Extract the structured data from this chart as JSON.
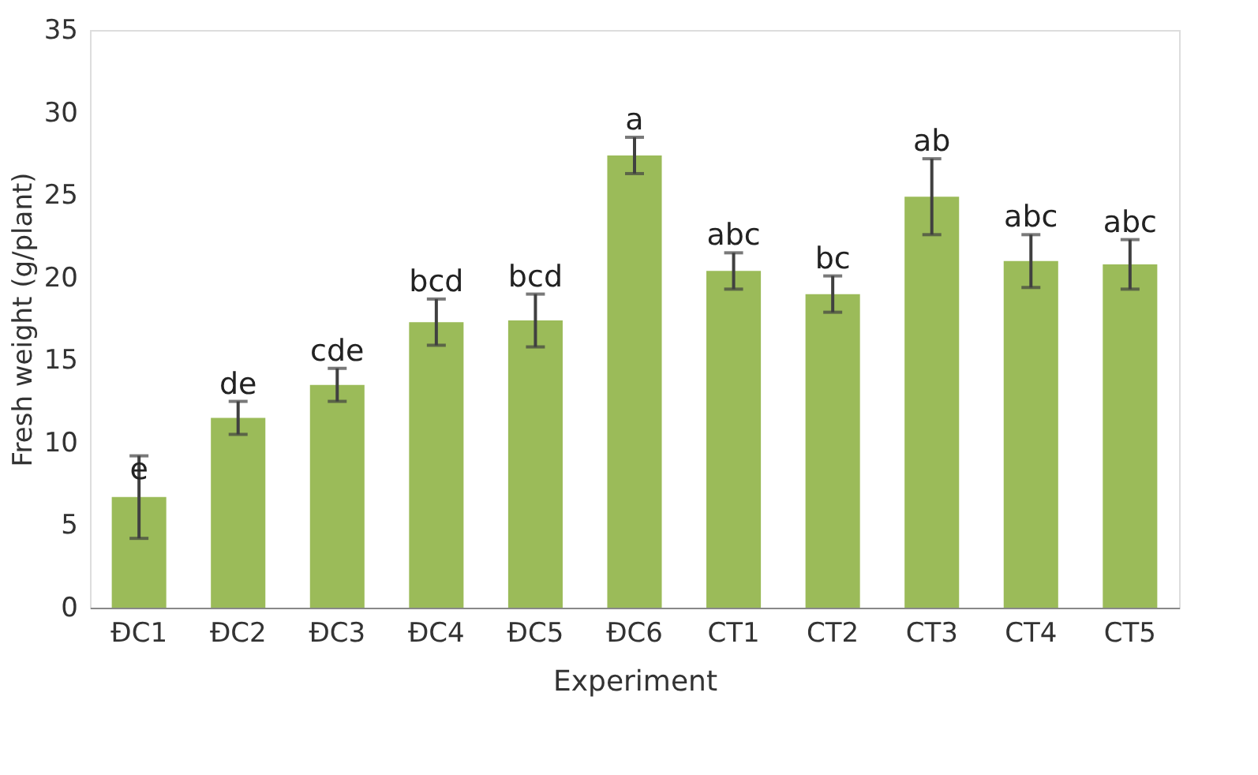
{
  "chart_data": {
    "type": "bar",
    "xlabel": "Experiment",
    "ylabel": "Fresh weight (g/plant)",
    "categories": [
      "ĐC1",
      "ĐC2",
      "ĐC3",
      "ĐC4",
      "ĐC5",
      "ĐC6",
      "CT1",
      "CT2",
      "CT3",
      "CT4",
      "CT5"
    ],
    "values": [
      6.7,
      11.5,
      13.5,
      17.3,
      17.4,
      27.4,
      20.4,
      19.0,
      24.9,
      21.0,
      20.8
    ],
    "errors": [
      2.5,
      1.0,
      1.0,
      1.4,
      1.6,
      1.1,
      1.1,
      1.1,
      2.3,
      1.6,
      1.5
    ],
    "color": "#9bbb59",
    "ylim": [
      0,
      35
    ],
    "yticks": [
      0,
      5,
      10,
      15,
      20,
      25,
      30,
      35
    ],
    "grid": false,
    "annotations": [
      {
        "text": "e",
        "x": "ĐC1",
        "y": 7.3
      },
      {
        "text": "de",
        "x": "ĐC2",
        "y": 12.5
      },
      {
        "text": "cde",
        "x": "ĐC3",
        "y": 14.5
      },
      {
        "text": "bcd",
        "x": "ĐC4",
        "y": 18.7
      },
      {
        "text": "bcd",
        "x": "ĐC5",
        "y": 19.0
      },
      {
        "text": "a",
        "x": "ĐC6",
        "y": 28.5
      },
      {
        "text": "abc",
        "x": "CT1",
        "y": 21.5
      },
      {
        "text": "bc",
        "x": "CT2",
        "y": 20.1
      },
      {
        "text": "ab",
        "x": "CT3",
        "y": 27.2
      },
      {
        "text": "abc",
        "x": "CT4",
        "y": 22.6
      },
      {
        "text": "abc",
        "x": "CT5",
        "y": 22.3
      }
    ]
  }
}
